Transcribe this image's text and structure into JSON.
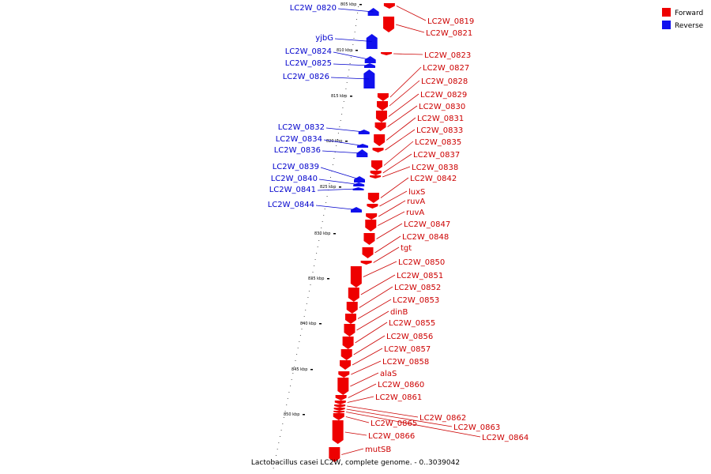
{
  "caption": "Lactobacillus casei LC2W, complete genome. - 0..3039042",
  "legend": {
    "forward_label": "Forward",
    "reverse_label": "Reverse",
    "forward_color": "#ee0000",
    "reverse_color": "#1111ee"
  },
  "ticks": [
    "805 kbp",
    "810 kbp",
    "815 kbp",
    "820 kbp",
    "825 kbp",
    "830 kbp",
    "835 kbp",
    "840 kbp",
    "845 kbp",
    "850 kbp"
  ],
  "reverse_genes": [
    "LC2W_0820",
    "yjbG",
    "LC2W_0824",
    "LC2W_0825",
    "LC2W_0826",
    "LC2W_0832",
    "LC2W_0834",
    "LC2W_0836",
    "LC2W_0839",
    "LC2W_0840",
    "LC2W_0841",
    "LC2W_0844"
  ],
  "forward_genes": [
    "LC2W_0819",
    "LC2W_0821",
    "LC2W_0823",
    "LC2W_0827",
    "LC2W_0828",
    "LC2W_0829",
    "LC2W_0830",
    "LC2W_0831",
    "LC2W_0833",
    "LC2W_0835",
    "LC2W_0837",
    "LC2W_0838",
    "LC2W_0842",
    "luxS",
    "ruvA",
    "ruvA",
    "LC2W_0847",
    "LC2W_0848",
    "tgt",
    "LC2W_0850",
    "LC2W_0851",
    "LC2W_0852",
    "LC2W_0853",
    "dinB",
    "LC2W_0855",
    "LC2W_0856",
    "LC2W_0857",
    "LC2W_0858",
    "alaS",
    "LC2W_0860",
    "LC2W_0861",
    "LC2W_0862",
    "LC2W_0863",
    "LC2W_0864",
    "LC2W_0865",
    "LC2W_0866",
    "mutSB"
  ]
}
